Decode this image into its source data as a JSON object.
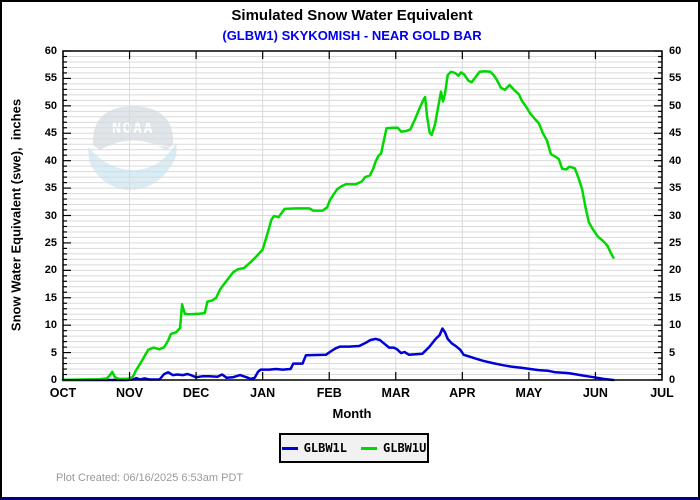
{
  "header": {
    "title": "Simulated Snow Water Equivalent",
    "subtitle": "(GLBW1) SKYKOMISH - NEAR GOLD BAR",
    "subtitle_color": "#0000ee"
  },
  "watermark": {
    "name": "noaa-logo",
    "text": "NOAA"
  },
  "legend": {
    "items": [
      {
        "label": "GLBW1L",
        "color": "#0000d8"
      },
      {
        "label": "GLBW1U",
        "color": "#00d800"
      }
    ]
  },
  "footer": {
    "plot_created": "Plot Created: 06/16/2025 6:53am PDT"
  },
  "chart_data": {
    "type": "line",
    "title": "Simulated Snow Water Equivalent",
    "subtitle": "(GLBW1) SKYKOMISH - NEAR GOLD BAR",
    "xlabel": "Month",
    "ylabel": "Snow Water Equivalent (swe),  inches",
    "x_tick_labels": [
      "OCT",
      "NOV",
      "DEC",
      "JAN",
      "FEB",
      "MAR",
      "APR",
      "MAY",
      "JUN",
      "JUL"
    ],
    "x_range_months": [
      0,
      9
    ],
    "ylim": [
      0,
      60
    ],
    "y_major_ticks": [
      0,
      5,
      10,
      15,
      20,
      25,
      30,
      35,
      40,
      45,
      50,
      55,
      60
    ],
    "y_minor_step": 1,
    "grid": {
      "horizontal_every": 1,
      "vertical_every_month": 1,
      "color": "#dadada"
    },
    "legend_position": "bottom-center",
    "series": [
      {
        "name": "GLBW1L",
        "color": "#0000d8",
        "points": [
          [
            0,
            0
          ],
          [
            0.95,
            0
          ],
          [
            1.05,
            0.1
          ],
          [
            1.1,
            0.35
          ],
          [
            1.16,
            0.1
          ],
          [
            1.22,
            0.3
          ],
          [
            1.3,
            0.1
          ],
          [
            1.45,
            0.1
          ],
          [
            1.52,
            1.1
          ],
          [
            1.58,
            1.4
          ],
          [
            1.65,
            0.9
          ],
          [
            1.72,
            1
          ],
          [
            1.8,
            0.9
          ],
          [
            1.87,
            1.1
          ],
          [
            1.94,
            0.8
          ],
          [
            2,
            0.5
          ],
          [
            2.1,
            0.7
          ],
          [
            2.2,
            0.7
          ],
          [
            2.32,
            0.6
          ],
          [
            2.39,
            1
          ],
          [
            2.46,
            0.4
          ],
          [
            2.55,
            0.5
          ],
          [
            2.66,
            0.9
          ],
          [
            2.76,
            0.5
          ],
          [
            2.82,
            0.2
          ],
          [
            2.88,
            0.4
          ],
          [
            2.93,
            1.5
          ],
          [
            2.97,
            1.9
          ],
          [
            3.1,
            1.9
          ],
          [
            3.2,
            2
          ],
          [
            3.3,
            1.9
          ],
          [
            3.42,
            2
          ],
          [
            3.46,
            3
          ],
          [
            3.6,
            3
          ],
          [
            3.65,
            4.5
          ],
          [
            3.95,
            4.6
          ],
          [
            4.02,
            5.2
          ],
          [
            4.1,
            5.8
          ],
          [
            4.16,
            6.1
          ],
          [
            4.3,
            6.1
          ],
          [
            4.45,
            6.2
          ],
          [
            4.52,
            6.6
          ],
          [
            4.58,
            7
          ],
          [
            4.62,
            7.3
          ],
          [
            4.7,
            7.5
          ],
          [
            4.76,
            7.3
          ],
          [
            4.83,
            6.6
          ],
          [
            4.9,
            5.9
          ],
          [
            4.97,
            5.9
          ],
          [
            5.02,
            5.6
          ],
          [
            5.08,
            4.9
          ],
          [
            5.13,
            5.1
          ],
          [
            5.2,
            4.6
          ],
          [
            5.3,
            4.7
          ],
          [
            5.4,
            4.8
          ],
          [
            5.5,
            6
          ],
          [
            5.6,
            7.5
          ],
          [
            5.66,
            8.2
          ],
          [
            5.7,
            9.4
          ],
          [
            5.74,
            8.7
          ],
          [
            5.78,
            7.5
          ],
          [
            5.84,
            6.7
          ],
          [
            5.9,
            6.2
          ],
          [
            5.97,
            5.5
          ],
          [
            6.02,
            4.6
          ],
          [
            6.1,
            4.3
          ],
          [
            6.2,
            3.9
          ],
          [
            6.31,
            3.5
          ],
          [
            6.45,
            3.1
          ],
          [
            6.61,
            2.7
          ],
          [
            6.75,
            2.4
          ],
          [
            6.9,
            2.2
          ],
          [
            7.02,
            2
          ],
          [
            7.15,
            1.8
          ],
          [
            7.28,
            1.7
          ],
          [
            7.4,
            1.4
          ],
          [
            7.55,
            1.3
          ],
          [
            7.62,
            1.2
          ],
          [
            7.72,
            1
          ],
          [
            7.82,
            0.8
          ],
          [
            7.92,
            0.6
          ],
          [
            8.03,
            0.4
          ],
          [
            8.12,
            0.2
          ],
          [
            8.2,
            0.1
          ],
          [
            8.27,
            0
          ]
        ]
      },
      {
        "name": "GLBW1U",
        "color": "#00d800",
        "points": [
          [
            0,
            0
          ],
          [
            0.3,
            0.1
          ],
          [
            0.55,
            0.15
          ],
          [
            0.66,
            0.3
          ],
          [
            0.7,
            0.8
          ],
          [
            0.74,
            1.5
          ],
          [
            0.78,
            0.5
          ],
          [
            0.84,
            0.2
          ],
          [
            0.95,
            0.2
          ],
          [
            1,
            0.3
          ],
          [
            1.05,
            0.6
          ],
          [
            1.1,
            1.8
          ],
          [
            1.19,
            3.6
          ],
          [
            1.28,
            5.5
          ],
          [
            1.36,
            5.9
          ],
          [
            1.45,
            5.6
          ],
          [
            1.52,
            6
          ],
          [
            1.58,
            7.2
          ],
          [
            1.62,
            8.4
          ],
          [
            1.7,
            8.7
          ],
          [
            1.76,
            9.5
          ],
          [
            1.79,
            13.8
          ],
          [
            1.83,
            12.1
          ],
          [
            1.9,
            12
          ],
          [
            2.05,
            12.1
          ],
          [
            2.13,
            12.2
          ],
          [
            2.17,
            14.3
          ],
          [
            2.24,
            14.5
          ],
          [
            2.3,
            15
          ],
          [
            2.36,
            16.5
          ],
          [
            2.42,
            17.5
          ],
          [
            2.49,
            18.6
          ],
          [
            2.56,
            19.7
          ],
          [
            2.63,
            20.2
          ],
          [
            2.72,
            20.4
          ],
          [
            2.82,
            21.5
          ],
          [
            2.92,
            22.7
          ],
          [
            3,
            23.8
          ],
          [
            3.08,
            27
          ],
          [
            3.13,
            29.2
          ],
          [
            3.17,
            29.9
          ],
          [
            3.24,
            29.7
          ],
          [
            3.33,
            31.2
          ],
          [
            3.5,
            31.3
          ],
          [
            3.7,
            31.3
          ],
          [
            3.76,
            30.9
          ],
          [
            3.9,
            30.9
          ],
          [
            3.97,
            31.5
          ],
          [
            4.01,
            32.8
          ],
          [
            4.07,
            33.9
          ],
          [
            4.12,
            34.8
          ],
          [
            4.18,
            35.3
          ],
          [
            4.25,
            35.7
          ],
          [
            4.4,
            35.7
          ],
          [
            4.49,
            36.2
          ],
          [
            4.54,
            37
          ],
          [
            4.61,
            37.3
          ],
          [
            4.66,
            38.5
          ],
          [
            4.7,
            39.9
          ],
          [
            4.74,
            40.9
          ],
          [
            4.78,
            41.3
          ],
          [
            4.82,
            43.6
          ],
          [
            4.86,
            45.9
          ],
          [
            4.95,
            46
          ],
          [
            5.03,
            46
          ],
          [
            5.08,
            45.3
          ],
          [
            5.15,
            45.4
          ],
          [
            5.22,
            45.7
          ],
          [
            5.29,
            47.6
          ],
          [
            5.36,
            49.6
          ],
          [
            5.42,
            51.2
          ],
          [
            5.44,
            51.6
          ],
          [
            5.47,
            48
          ],
          [
            5.51,
            45.1
          ],
          [
            5.54,
            44.7
          ],
          [
            5.59,
            46.6
          ],
          [
            5.64,
            50
          ],
          [
            5.68,
            52.6
          ],
          [
            5.71,
            50.8
          ],
          [
            5.74,
            52.2
          ],
          [
            5.78,
            55.6
          ],
          [
            5.83,
            56.2
          ],
          [
            5.89,
            56
          ],
          [
            5.94,
            55.5
          ],
          [
            5.98,
            56.1
          ],
          [
            6.03,
            55.7
          ],
          [
            6.09,
            54.6
          ],
          [
            6.14,
            54.3
          ],
          [
            6.19,
            55.1
          ],
          [
            6.26,
            56.2
          ],
          [
            6.34,
            56.3
          ],
          [
            6.42,
            56.2
          ],
          [
            6.47,
            55.6
          ],
          [
            6.51,
            54.9
          ],
          [
            6.58,
            53.3
          ],
          [
            6.64,
            52.9
          ],
          [
            6.71,
            53.8
          ],
          [
            6.77,
            53
          ],
          [
            6.85,
            52.1
          ],
          [
            6.89,
            51
          ],
          [
            6.96,
            49.8
          ],
          [
            7.02,
            48.6
          ],
          [
            7.09,
            47.6
          ],
          [
            7.15,
            46.8
          ],
          [
            7.21,
            45
          ],
          [
            7.27,
            43.7
          ],
          [
            7.33,
            41.2
          ],
          [
            7.39,
            40.8
          ],
          [
            7.45,
            40.3
          ],
          [
            7.5,
            38.5
          ],
          [
            7.56,
            38.4
          ],
          [
            7.61,
            38.9
          ],
          [
            7.69,
            38.6
          ],
          [
            7.75,
            36.7
          ],
          [
            7.8,
            34.8
          ],
          [
            7.85,
            31.5
          ],
          [
            7.9,
            28.8
          ],
          [
            7.96,
            27.5
          ],
          [
            8.04,
            26.1
          ],
          [
            8.11,
            25.4
          ],
          [
            8.18,
            24.5
          ],
          [
            8.23,
            23.2
          ],
          [
            8.27,
            22.3
          ]
        ]
      }
    ]
  }
}
